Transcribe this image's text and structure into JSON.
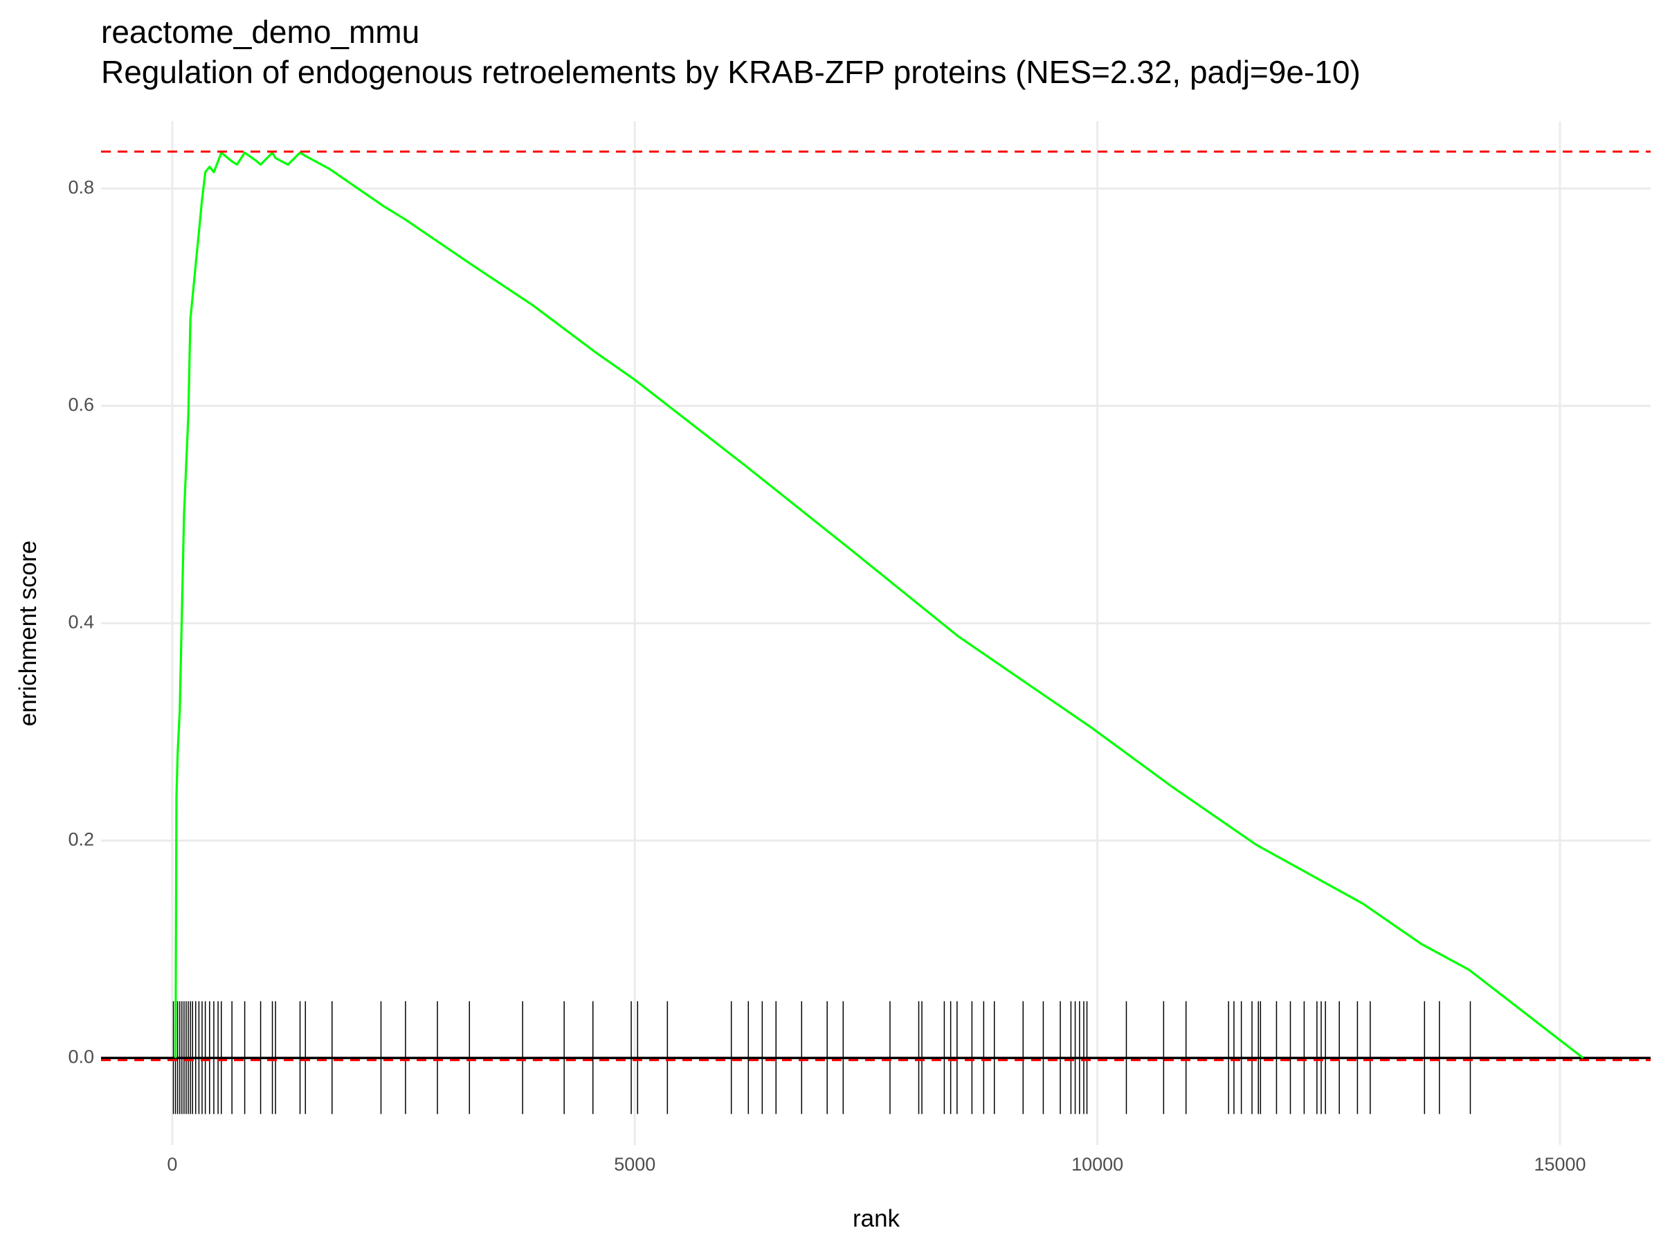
{
  "chart_data": {
    "type": "line",
    "title": "reactome_demo_mmu",
    "subtitle": "Regulation of endogenous retroelements by KRAB-ZFP proteins (NES=2.32, padj=9e-10)",
    "x_label": "rank",
    "y_label": "enrichment score",
    "x": [
      35,
      45,
      58,
      81,
      104,
      127,
      150,
      173,
      196,
      219,
      253,
      288,
      322,
      357,
      403,
      449,
      495,
      530,
      645,
      700,
      783,
      900,
      955,
      1082,
      1116,
      1250,
      1381,
      1439,
      1700,
      2280,
      2510,
      2855,
      3200,
      3890,
      4580,
      5000,
      6195,
      7345,
      8495,
      9935,
      10800,
      11720,
      12870,
      13500,
      14020,
      15250
    ],
    "values": [
      0,
      0.24,
      0.28,
      0.32,
      0.41,
      0.5,
      0.545,
      0.59,
      0.68,
      0.7,
      0.73,
      0.76,
      0.79,
      0.815,
      0.82,
      0.815,
      0.825,
      0.833,
      0.825,
      0.822,
      0.833,
      0.826,
      0.822,
      0.833,
      0.828,
      0.822,
      0.833,
      0.83,
      0.818,
      0.784,
      0.772,
      0.752,
      0.732,
      0.693,
      0.649,
      0.624,
      0.545,
      0.467,
      0.388,
      0.304,
      0.25,
      0.196,
      0.142,
      0.105,
      0.081,
      0
    ],
    "color": "#00ff00",
    "xlim": [
      -770,
      15980
    ],
    "ylim": [
      -0.08,
      0.862
    ],
    "xticks": [
      0,
      5000,
      10000,
      15000
    ],
    "yticks": [
      {
        "value": 0,
        "label": "0.0"
      },
      0.2,
      0.4,
      0.6,
      0.8
    ],
    "grid": true,
    "rug": {
      "color": "#000000",
      "x": [
        12,
        35,
        58,
        81,
        104,
        127,
        150,
        173,
        196,
        219,
        253,
        288,
        322,
        357,
        403,
        449,
        495,
        530,
        645,
        783,
        955,
        1082,
        1116,
        1381,
        1439,
        1727,
        2256,
        2521,
        2866,
        3212,
        3787,
        4236,
        4547,
        4961,
        5030,
        5352,
        6043,
        6227,
        6377,
        6526,
        6803,
        7079,
        7252,
        7758,
        8069,
        8103,
        8345,
        8414,
        8483,
        8644,
        8771,
        8886,
        9197,
        9415,
        9599,
        9714,
        9760,
        9807,
        9853,
        9887,
        10313,
        10716,
        10958,
        11418,
        11476,
        11556,
        11671,
        11740,
        11763,
        11936,
        12086,
        12235,
        12373,
        12419,
        12465,
        12615,
        12811,
        12949,
        13536,
        13697,
        14031
      ]
    },
    "hlines": [
      {
        "value": 0.834,
        "color": "#ff0000",
        "dashed": true
      },
      {
        "value": 0,
        "color": "#000000",
        "dashed": false
      },
      {
        "value": -0.002,
        "color": "#ff0000",
        "dashed": true
      }
    ]
  }
}
